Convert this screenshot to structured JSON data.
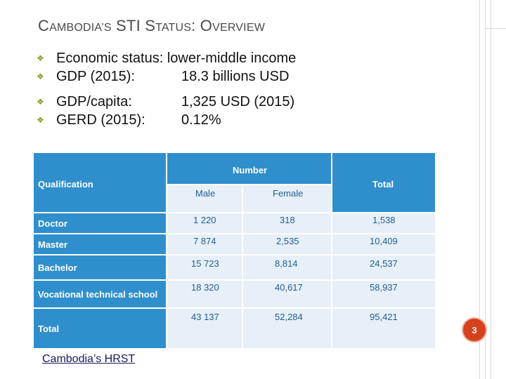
{
  "title": {
    "part1_cap": "C",
    "part1_rest": "AMBODIA",
    "part1_apos": "’S",
    "part2_cap": " STI S",
    "part2_rest": "TATUS",
    "part3": ": O",
    "part3_rest": "VERVIEW"
  },
  "bullets": [
    {
      "label": "Economic status: lower-middle income",
      "value": ""
    },
    {
      "label": "GDP (2015):",
      "value": "18.3 billions USD"
    },
    {
      "label": "GDP/capita:",
      "value": "1,325 USD (2015)"
    },
    {
      "label": "GERD (2015):",
      "value": "0.12%"
    }
  ],
  "table": {
    "header": {
      "qualification": "Qualification",
      "number": "Number",
      "male": "Male",
      "female": "Female",
      "total": "Total"
    },
    "rows": [
      {
        "label": "Doctor",
        "male": "1 220",
        "female": "318",
        "total": "1,538"
      },
      {
        "label": "Master",
        "male": "7 874",
        "female": "2,535",
        "total": "10,409"
      },
      {
        "label": "Bachelor",
        "male": "15 723",
        "female": "8,814",
        "total": "24,537"
      },
      {
        "label": "Vocational technical school",
        "male": "18 320",
        "female": "40,617",
        "total": "58,937"
      },
      {
        "label": "Total",
        "male": "43 137",
        "female": "52,284",
        "total": "95,421"
      }
    ]
  },
  "page_number": "3",
  "source_link": "Cambodia’s HRST",
  "colors": {
    "accent_blue": "#2f8fcc",
    "light_cell": "#e7eff8",
    "badge": "#d6411d"
  }
}
